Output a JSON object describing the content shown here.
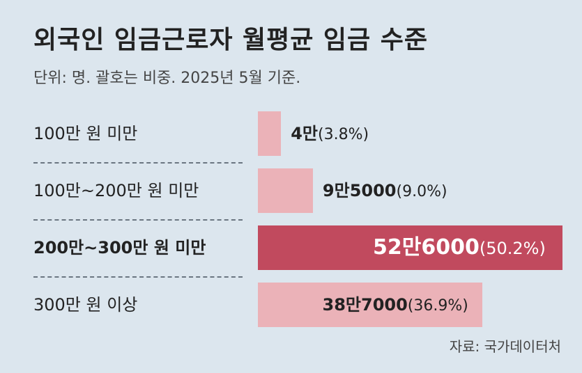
{
  "header": {
    "title": "외국인 임금근로자 월평균 임금 수준",
    "subtitle": "단위: 명. 괄호는 비중. 2025년 5월 기준."
  },
  "source": "자료: 국가데이터처",
  "colors": {
    "bar": "#ebb2b8",
    "bar_highlight": "#c14a5e",
    "background": "#dce6ee"
  },
  "chart_data": {
    "type": "bar",
    "orientation": "horizontal",
    "title": "외국인 임금근로자 월평균 임금 수준",
    "subtitle": "단위: 명. 괄호는 비중. 2025년 5월 기준.",
    "categories": [
      "100만 원 미만",
      "100만~200만 원 미만",
      "200만~300만 원 미만",
      "300만 원 이상"
    ],
    "values": [
      40000,
      95000,
      526000,
      387000
    ],
    "shares": [
      3.8,
      9.0,
      50.2,
      36.9
    ],
    "value_labels": [
      "4만",
      "9만5000",
      "52만6000",
      "38만7000"
    ],
    "share_labels": [
      "(3.8%)",
      "(9.0%)",
      "(50.2%)",
      "(36.9%)"
    ],
    "highlight_index": 2,
    "xlim": [
      0,
      526000
    ]
  }
}
